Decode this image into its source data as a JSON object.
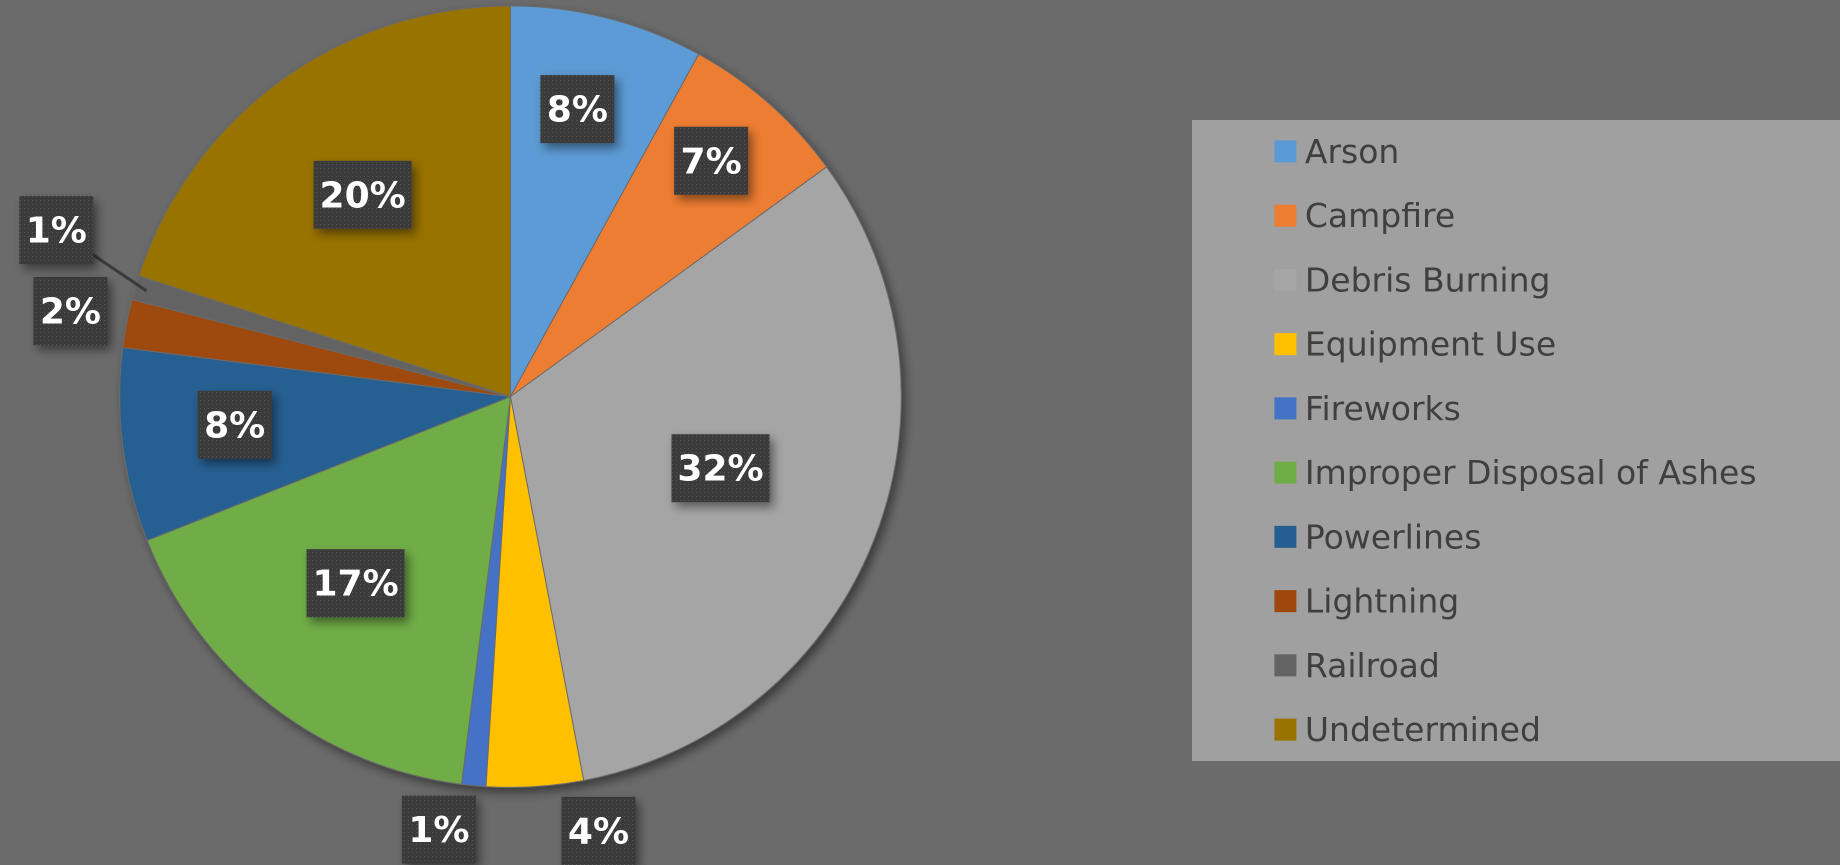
{
  "chart_data": {
    "type": "pie",
    "categories": [
      "Arson",
      "Campfire",
      "Debris Burning",
      "Equipment Use",
      "Fireworks",
      "Improper Disposal of Ashes",
      "Powerlines",
      "Lightning",
      "Railroad",
      "Undetermined"
    ],
    "values": [
      8,
      7,
      32,
      4,
      1,
      17,
      8,
      2,
      1,
      20
    ],
    "value_labels": [
      "8%",
      "7%",
      "32%",
      "4%",
      "1%",
      "17%",
      "8%",
      "2%",
      "1%",
      "20%"
    ],
    "colors": [
      "#5b9bd5",
      "#ed7d31",
      "#a5a5a5",
      "#ffc000",
      "#4472c4",
      "#70ad47",
      "#255e91",
      "#9e480e",
      "#636363",
      "#997300"
    ],
    "legend": "right"
  }
}
